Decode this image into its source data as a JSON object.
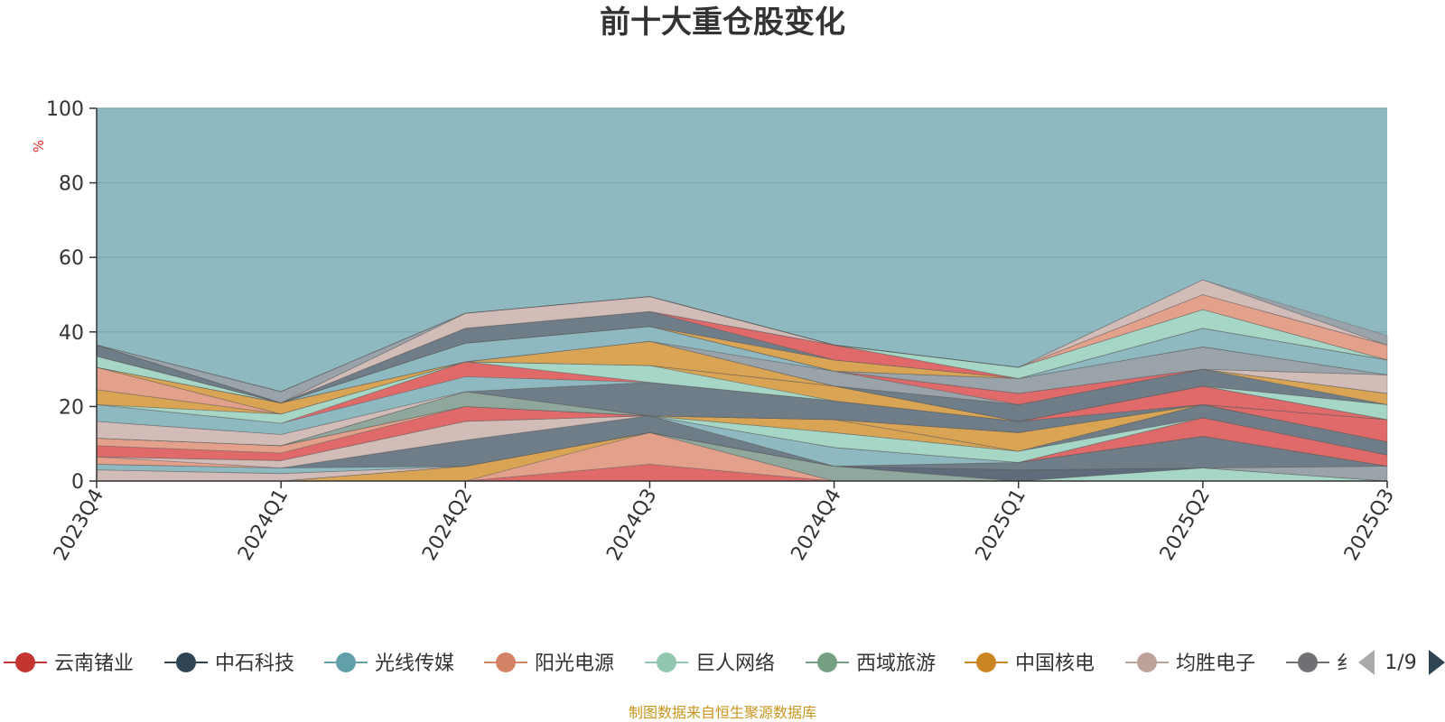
{
  "chart_data": {
    "type": "area",
    "title": "前十大重仓股变化",
    "ylabel": "%",
    "ylim": [
      0,
      100
    ],
    "yticks": [
      "0",
      "20",
      "40",
      "60",
      "80",
      "100"
    ],
    "categories": [
      "2023Q4",
      "2024Q1",
      "2024Q2",
      "2024Q3",
      "2024Q4",
      "2025Q1",
      "2025Q2",
      "2025Q3"
    ],
    "background_color": "#8fb9c0",
    "layers": [
      {
        "color": "#e06a6a",
        "values": [
          0,
          0,
          0,
          4.5,
          0,
          0,
          0,
          0
        ]
      },
      {
        "color": "#e3a08a",
        "values": [
          0,
          0,
          0,
          8.5,
          0,
          0,
          0,
          0
        ]
      },
      {
        "color": "#d9a555",
        "values": [
          0,
          0,
          4,
          0,
          0,
          0,
          0,
          0
        ]
      },
      {
        "color": "#8fa79c",
        "values": [
          0,
          0,
          0,
          0,
          4,
          0,
          0,
          0
        ]
      },
      {
        "color": "#a6d6c5",
        "values": [
          0,
          0,
          0,
          0,
          0,
          0,
          3.5,
          0
        ]
      },
      {
        "color": "#5f6b7a",
        "values": [
          0,
          0,
          0,
          0,
          0,
          3,
          0,
          0
        ]
      },
      {
        "color": "#d2bcb8",
        "values": [
          3,
          2,
          0,
          0,
          0,
          0,
          0,
          0
        ]
      },
      {
        "color": "#9aa3aa",
        "values": [
          0,
          0,
          0,
          0,
          0,
          0,
          0,
          4
        ]
      },
      {
        "color": "#8fb9c0",
        "values": [
          1.5,
          1.5,
          0,
          0,
          0,
          0,
          0,
          0
        ]
      },
      {
        "color": "#6f7d88",
        "values": [
          0,
          0,
          7,
          4.5,
          0,
          2,
          8.5,
          0
        ]
      },
      {
        "color": "#e3a08a",
        "values": [
          2,
          0,
          0,
          0,
          0,
          0,
          0,
          0
        ]
      },
      {
        "color": "#d2bcb8",
        "values": [
          0,
          2,
          5,
          0,
          0,
          0,
          0,
          0
        ]
      },
      {
        "color": "#8fb9c0",
        "values": [
          0,
          0,
          0,
          0,
          5,
          0,
          0,
          0
        ]
      },
      {
        "color": "#e06a6a",
        "values": [
          3,
          2,
          4,
          0,
          0,
          0,
          5,
          3
        ]
      },
      {
        "color": "#e3a08a",
        "values": [
          2,
          2,
          0,
          0,
          0,
          0,
          0,
          0
        ]
      },
      {
        "color": "#a6d6c5",
        "values": [
          0,
          0,
          0,
          0,
          4,
          3,
          0,
          0
        ]
      },
      {
        "color": "#6f7d88",
        "values": [
          0,
          0,
          0,
          0,
          0,
          0,
          3.5,
          3.5
        ]
      },
      {
        "color": "#d9a555",
        "values": [
          0,
          0,
          0,
          0,
          3.5,
          0,
          0,
          0
        ]
      },
      {
        "color": "#8fa79c",
        "values": [
          0,
          0,
          4,
          0,
          0,
          0,
          0,
          0
        ]
      },
      {
        "color": "#d9a555",
        "values": [
          0,
          0,
          0,
          0,
          0,
          5,
          0,
          0
        ]
      },
      {
        "color": "#e06a6a",
        "values": [
          0,
          0,
          0,
          0,
          0,
          0,
          0,
          6
        ]
      },
      {
        "color": "#d2bcb8",
        "values": [
          4.5,
          3,
          0,
          0,
          0,
          0,
          0,
          0
        ]
      },
      {
        "color": "#6f7d88",
        "values": [
          0,
          0,
          0,
          9,
          5,
          3,
          0,
          0
        ]
      },
      {
        "color": "#8fb9c0",
        "values": [
          4.5,
          3,
          4,
          0,
          0,
          0,
          0,
          0
        ]
      },
      {
        "color": "#e06a6a",
        "values": [
          0,
          0,
          4,
          0,
          0,
          0,
          5,
          0
        ]
      },
      {
        "color": "#a6d6c5",
        "values": [
          0,
          2.5,
          0,
          4.5,
          0,
          0,
          0,
          0
        ]
      },
      {
        "color": "#d9a555",
        "values": [
          4,
          0,
          0,
          0,
          4,
          0,
          0,
          0
        ]
      },
      {
        "color": "#e3a08a",
        "values": [
          6,
          0,
          0,
          0,
          0,
          0,
          0,
          0
        ]
      },
      {
        "color": "#a6d6c5",
        "values": [
          0,
          0,
          0,
          0,
          0,
          0,
          0,
          4
        ]
      },
      {
        "color": "#d9a555",
        "values": [
          0,
          3,
          0,
          6.5,
          0,
          0,
          0,
          0
        ]
      },
      {
        "color": "#6f7d88",
        "values": [
          0,
          0,
          0,
          0,
          0,
          4.5,
          4.5,
          0
        ]
      },
      {
        "color": "#d9a555",
        "values": [
          0,
          0,
          0,
          0,
          0,
          0,
          0,
          3
        ]
      },
      {
        "color": "#9aa3aa",
        "values": [
          0,
          0,
          0,
          0,
          4,
          0,
          0,
          0
        ]
      },
      {
        "color": "#e06a6a",
        "values": [
          0,
          0,
          0,
          0,
          0,
          3,
          0,
          0
        ]
      },
      {
        "color": "#8fb9c0",
        "values": [
          0,
          0,
          5,
          4,
          0,
          0,
          0,
          0
        ]
      },
      {
        "color": "#d2bcb8",
        "values": [
          0,
          0,
          0,
          0,
          0,
          0,
          0,
          5
        ]
      },
      {
        "color": "#a6d6c5",
        "values": [
          3,
          0,
          0,
          0,
          0,
          0,
          0,
          0
        ]
      },
      {
        "color": "#9aa3aa",
        "values": [
          0,
          0,
          0,
          0,
          0,
          4,
          6,
          0
        ]
      },
      {
        "color": "#e06a6a",
        "values": [
          0,
          0,
          0,
          0,
          0,
          0,
          0,
          0
        ]
      },
      {
        "color": "#d9a555",
        "values": [
          0,
          0,
          0,
          0,
          3,
          0,
          0,
          0
        ]
      },
      {
        "color": "#8fb9c0",
        "values": [
          0,
          0,
          0,
          0,
          0,
          0,
          5,
          4
        ]
      },
      {
        "color": "#6f7d88",
        "values": [
          3,
          0,
          4,
          4,
          0,
          0,
          0,
          0
        ]
      },
      {
        "color": "#e06a6a",
        "values": [
          0,
          0,
          0,
          0,
          4,
          0,
          0,
          0
        ]
      },
      {
        "color": "#d9a555",
        "values": [
          0,
          0,
          0,
          0,
          0,
          0,
          0,
          0
        ]
      },
      {
        "color": "#a6d6c5",
        "values": [
          0,
          0,
          0,
          0,
          0,
          3,
          5,
          0
        ]
      },
      {
        "color": "#d2bcb8",
        "values": [
          0,
          0,
          4,
          4,
          0,
          0,
          0,
          0
        ]
      },
      {
        "color": "#e3a08a",
        "values": [
          0,
          0,
          0,
          0,
          0,
          0,
          4,
          4
        ]
      },
      {
        "color": "#9aa3aa",
        "values": [
          0,
          3,
          0,
          0,
          0,
          0,
          0,
          0
        ]
      },
      {
        "color": "#d2bcb8",
        "values": [
          0,
          0,
          0,
          0,
          0,
          0,
          4,
          0
        ]
      },
      {
        "color": "#9aa3aa",
        "values": [
          0,
          0,
          0,
          0,
          0,
          0,
          0,
          2.5
        ]
      }
    ],
    "legend": {
      "position": "bottom",
      "items": [
        {
          "name": "云南锗业",
          "color": "#c23531"
        },
        {
          "name": "中石科技",
          "color": "#2f4554"
        },
        {
          "name": "光线传媒",
          "color": "#61a0a8"
        },
        {
          "name": "阳光电源",
          "color": "#d48265"
        },
        {
          "name": "巨人网络",
          "color": "#91c7ae"
        },
        {
          "name": "西域旅游",
          "color": "#749f83"
        },
        {
          "name": "中国核电",
          "color": "#ca8622"
        },
        {
          "name": "均胜电子",
          "color": "#bda29a"
        },
        {
          "name": "纟",
          "color": "#6e7074"
        }
      ],
      "page": "1/9"
    },
    "grid": true
  },
  "source_note": "制图数据来自恒生聚源数据库"
}
